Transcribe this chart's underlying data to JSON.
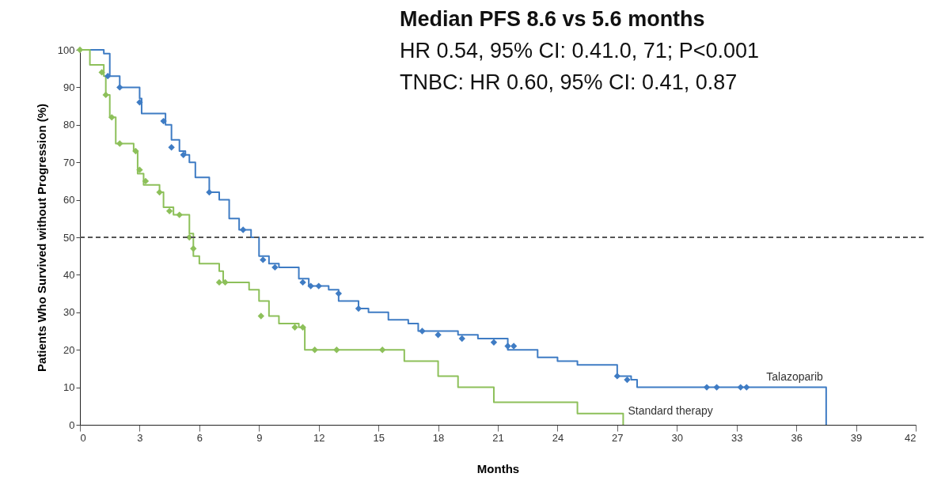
{
  "chart_data": {
    "type": "step",
    "xlabel": "Months",
    "ylabel": "Patients Who Survived without Progression (%)",
    "annotations": [
      "Median PFS 8.6 vs 5.6 months",
      "HR 0.54, 95% CI: 0.41.0, 71; P<0.001",
      "TNBC: HR 0.60, 95% CI: 0.41, 0.87"
    ],
    "xlim": [
      0,
      42
    ],
    "xticks": [
      0,
      3,
      6,
      9,
      12,
      15,
      18,
      21,
      24,
      27,
      30,
      33,
      36,
      39,
      42
    ],
    "ylim": [
      0,
      100
    ],
    "yticks": [
      0,
      10,
      20,
      30,
      40,
      50,
      60,
      70,
      80,
      90,
      100
    ],
    "grid": false,
    "line_style": "solid",
    "ref_lines": [
      {
        "axis": "y",
        "value": 50,
        "line_style": "dashed",
        "color": "#555555"
      }
    ],
    "series": [
      {
        "name": "Talazoparib",
        "color": "#3f7cc4",
        "x": [
          0,
          1.2,
          1.5,
          2,
          3,
          3.1,
          4.3,
          4.6,
          5,
          5.3,
          5.5,
          5.8,
          6.5,
          7,
          7.5,
          8,
          8.6,
          9,
          9.5,
          10,
          11,
          11.5,
          12.5,
          13,
          14,
          14.5,
          15.5,
          16.5,
          17,
          19,
          20,
          21.5,
          23,
          24,
          25,
          27,
          27.7,
          28,
          37.5
        ],
        "values": [
          100,
          99,
          93,
          90,
          87,
          83,
          80,
          76,
          73,
          72,
          70,
          66,
          62,
          60,
          55,
          52,
          50,
          45,
          43,
          42,
          39,
          37,
          36,
          33,
          31,
          30,
          28,
          27,
          25,
          24,
          23,
          20,
          18,
          17,
          16,
          13,
          12,
          10,
          0
        ]
      },
      {
        "name": "Standard therapy",
        "color": "#8dc05a",
        "x": [
          0,
          0.5,
          1.2,
          1.3,
          1.5,
          1.8,
          2.7,
          2.9,
          3.2,
          4,
          4.2,
          4.7,
          5.5,
          5.7,
          6,
          7,
          7.2,
          8.5,
          9,
          9.5,
          10,
          11,
          11.3,
          15.5,
          16.3,
          18,
          19,
          20.8,
          25,
          27.3
        ],
        "values": [
          100,
          96,
          93,
          88,
          82,
          75,
          73,
          67,
          64,
          62,
          58,
          56,
          51,
          45,
          43,
          41,
          38,
          36,
          33,
          29,
          27,
          26,
          20,
          20,
          17,
          13,
          10,
          6,
          3,
          0
        ]
      },
      {
        "type": "scatter",
        "marker": "diamond",
        "color": "#3f7cc4",
        "x": [
          1.4,
          2,
          3,
          4.2,
          4.6,
          5.2,
          6.5,
          8.2,
          9.2,
          9.8,
          11.2,
          11.6,
          12,
          13,
          14,
          17.2,
          18,
          19.2,
          20.8,
          21.5,
          21.8,
          27,
          27.5,
          31.5,
          32,
          33.2,
          33.5
        ],
        "values": [
          93,
          90,
          86,
          81,
          74,
          72,
          62,
          52,
          44,
          42,
          38,
          37,
          37,
          35,
          31,
          25,
          24,
          23,
          22,
          21,
          21,
          13,
          12,
          10,
          10,
          10,
          10
        ]
      },
      {
        "type": "scatter",
        "marker": "diamond",
        "color": "#8dc05a",
        "x": [
          0,
          1.1,
          1.3,
          1.6,
          2,
          2.8,
          3,
          3.3,
          4,
          4.5,
          5,
          5.5,
          5.7,
          7,
          7.3,
          9.1,
          10.8,
          11.2,
          11.8,
          12.9,
          15.2
        ],
        "values": [
          100,
          94,
          88,
          82,
          75,
          73,
          68,
          65,
          62,
          57,
          56,
          50,
          47,
          38,
          38,
          29,
          26,
          26,
          20,
          20,
          20
        ]
      }
    ]
  }
}
